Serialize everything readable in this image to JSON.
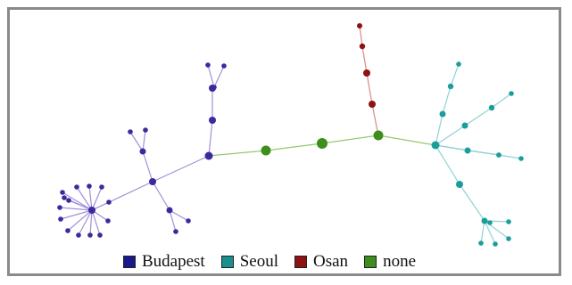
{
  "colors": {
    "budapest": "#3a2a9e",
    "seoul": "#1b9e9b",
    "osan": "#8e1212",
    "none": "#3d8e1c",
    "budapest_edge": "#a58fd8",
    "seoul_edge": "#8fd3d6",
    "osan_edge": "#d98a8a",
    "none_edge": "#93c96d"
  },
  "legend": [
    {
      "key": "budapest",
      "label": "Budapest",
      "color": "#1a1a8c"
    },
    {
      "key": "seoul",
      "label": "Seoul",
      "color": "#1a8f8f"
    },
    {
      "key": "osan",
      "label": "Osan",
      "color": "#8e1212"
    },
    {
      "key": "none",
      "label": "none",
      "color": "#3d8e1c"
    }
  ],
  "graph": {
    "nodes": [
      {
        "id": "n1",
        "group": "none"
      },
      {
        "id": "n2",
        "group": "none"
      },
      {
        "id": "n3",
        "group": "none"
      },
      {
        "id": "b_hub",
        "group": "budapest"
      },
      {
        "id": "b_up1",
        "group": "budapest"
      },
      {
        "id": "b_up2",
        "group": "budapest"
      },
      {
        "id": "b_up3",
        "group": "budapest"
      },
      {
        "id": "b_up_l",
        "group": "budapest"
      },
      {
        "id": "b_up_r",
        "group": "budapest"
      },
      {
        "id": "b_mid",
        "group": "budapest"
      },
      {
        "id": "b_mid_up",
        "group": "budapest"
      },
      {
        "id": "b_mid_up_l",
        "group": "budapest"
      },
      {
        "id": "b_mid_up_r",
        "group": "budapest"
      },
      {
        "id": "b_mid_dn",
        "group": "budapest"
      },
      {
        "id": "b_mid_dn_a",
        "group": "budapest"
      },
      {
        "id": "b_mid_dn_b",
        "group": "budapest"
      },
      {
        "id": "b_star",
        "group": "budapest"
      },
      {
        "id": "b_leaf1",
        "group": "budapest"
      },
      {
        "id": "b_leaf2",
        "group": "budapest"
      },
      {
        "id": "b_leaf3",
        "group": "budapest"
      },
      {
        "id": "b_leaf4",
        "group": "budapest"
      },
      {
        "id": "b_leaf5",
        "group": "budapest"
      },
      {
        "id": "b_leaf6",
        "group": "budapest"
      },
      {
        "id": "b_leaf7",
        "group": "budapest"
      },
      {
        "id": "b_leaf8",
        "group": "budapest"
      },
      {
        "id": "b_leaf9",
        "group": "budapest"
      },
      {
        "id": "b_leaf10",
        "group": "budapest"
      },
      {
        "id": "b_leaf11",
        "group": "budapest"
      },
      {
        "id": "b_leaf12",
        "group": "budapest"
      },
      {
        "id": "b_leaf13",
        "group": "budapest"
      },
      {
        "id": "b_leaf14",
        "group": "budapest"
      },
      {
        "id": "o1",
        "group": "osan"
      },
      {
        "id": "o2",
        "group": "osan"
      },
      {
        "id": "o3",
        "group": "osan"
      },
      {
        "id": "o4",
        "group": "osan"
      },
      {
        "id": "s_hub",
        "group": "seoul"
      },
      {
        "id": "s_up1",
        "group": "seoul"
      },
      {
        "id": "s_up2",
        "group": "seoul"
      },
      {
        "id": "s_up3",
        "group": "seoul"
      },
      {
        "id": "s_d1a",
        "group": "seoul"
      },
      {
        "id": "s_d1b",
        "group": "seoul"
      },
      {
        "id": "s_d1c",
        "group": "seoul"
      },
      {
        "id": "s_d2a",
        "group": "seoul"
      },
      {
        "id": "s_d2b",
        "group": "seoul"
      },
      {
        "id": "s_d3a",
        "group": "seoul"
      },
      {
        "id": "s_d3b",
        "group": "seoul"
      },
      {
        "id": "s_dn1",
        "group": "seoul"
      },
      {
        "id": "s_dn_hub",
        "group": "seoul"
      },
      {
        "id": "s_dn_l1",
        "group": "seoul"
      },
      {
        "id": "s_dn_l2",
        "group": "seoul"
      },
      {
        "id": "s_dn_l3",
        "group": "seoul"
      },
      {
        "id": "s_dn_l4",
        "group": "seoul"
      },
      {
        "id": "s_dn_l5",
        "group": "seoul"
      }
    ],
    "edges": [
      [
        "b_hub",
        "n1"
      ],
      [
        "n1",
        "n2"
      ],
      [
        "n2",
        "n3"
      ],
      [
        "n3",
        "o1"
      ],
      [
        "o1",
        "o2"
      ],
      [
        "o2",
        "o3"
      ],
      [
        "o3",
        "o4"
      ],
      [
        "n3",
        "s_hub"
      ],
      [
        "b_hub",
        "b_up1"
      ],
      [
        "b_up1",
        "b_up2"
      ],
      [
        "b_up2",
        "b_up3"
      ],
      [
        "b_up3",
        "b_up_l"
      ],
      [
        "b_up3",
        "b_up_r"
      ],
      [
        "b_hub",
        "b_mid"
      ],
      [
        "b_mid",
        "b_mid_up"
      ],
      [
        "b_mid_up",
        "b_mid_up_l"
      ],
      [
        "b_mid_up",
        "b_mid_up_r"
      ],
      [
        "b_mid",
        "b_mid_dn"
      ],
      [
        "b_mid_dn",
        "b_mid_dn_a"
      ],
      [
        "b_mid_dn",
        "b_mid_dn_b"
      ],
      [
        "b_mid",
        "b_star"
      ],
      [
        "b_star",
        "b_leaf1"
      ],
      [
        "b_star",
        "b_leaf2"
      ],
      [
        "b_star",
        "b_leaf3"
      ],
      [
        "b_star",
        "b_leaf4"
      ],
      [
        "b_star",
        "b_leaf5"
      ],
      [
        "b_star",
        "b_leaf6"
      ],
      [
        "b_star",
        "b_leaf7"
      ],
      [
        "b_star",
        "b_leaf8"
      ],
      [
        "b_star",
        "b_leaf9"
      ],
      [
        "b_star",
        "b_leaf10"
      ],
      [
        "b_star",
        "b_leaf11"
      ],
      [
        "b_star",
        "b_leaf12"
      ],
      [
        "b_star",
        "b_leaf13"
      ],
      [
        "b_star",
        "b_leaf14"
      ],
      [
        "s_hub",
        "s_up1"
      ],
      [
        "s_up1",
        "s_up2"
      ],
      [
        "s_up2",
        "s_up3"
      ],
      [
        "s_hub",
        "s_d1a"
      ],
      [
        "s_d1a",
        "s_d1b"
      ],
      [
        "s_d1b",
        "s_d1c"
      ],
      [
        "s_hub",
        "s_d2a"
      ],
      [
        "s_d2a",
        "s_d2b"
      ],
      [
        "s_hub",
        "s_d3a"
      ],
      [
        "s_d3a",
        "s_d3b"
      ],
      [
        "s_hub",
        "s_dn1"
      ],
      [
        "s_dn1",
        "s_dn_hub"
      ],
      [
        "s_dn_hub",
        "s_dn_l1"
      ],
      [
        "s_dn_hub",
        "s_dn_l2"
      ],
      [
        "s_dn_hub",
        "s_dn_l3"
      ],
      [
        "s_dn_hub",
        "s_dn_l4"
      ],
      [
        "s_dn_hub",
        "s_dn_l5"
      ]
    ]
  }
}
